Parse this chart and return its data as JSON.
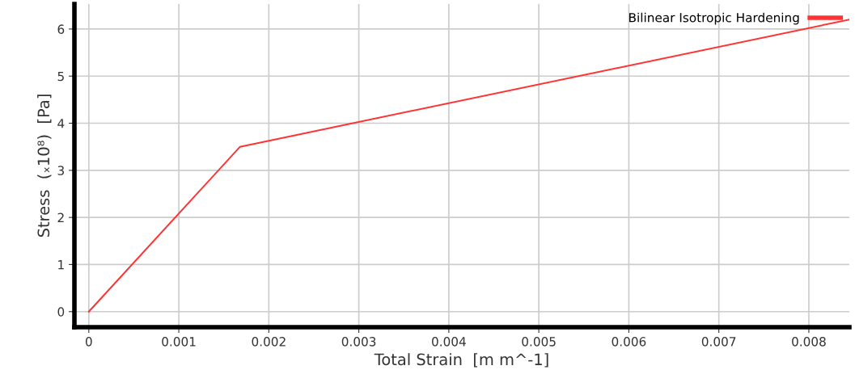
{
  "chart_data": {
    "type": "line",
    "xlabel": "Total Strain  [m m^-1]",
    "ylabel": "Stress  (ₓ10⁸)  [Pa]",
    "x": [
      0,
      0.00168,
      0.00845
    ],
    "series": [
      {
        "name": "Bilinear Isotropic Hardening",
        "color": "#ff3333",
        "values": [
          0,
          3.5,
          6.2
        ]
      }
    ],
    "xlim": [
      -0.00016,
      0.00845
    ],
    "ylim": [
      -0.33,
      6.53
    ],
    "xticks": [
      0,
      0.001,
      0.002,
      0.003,
      0.004,
      0.005,
      0.006,
      0.007,
      0.008
    ],
    "yticks": [
      0,
      1,
      2,
      3,
      4,
      5,
      6
    ],
    "grid": true,
    "legend": "top right",
    "marker": "none",
    "line_style": "solid"
  }
}
